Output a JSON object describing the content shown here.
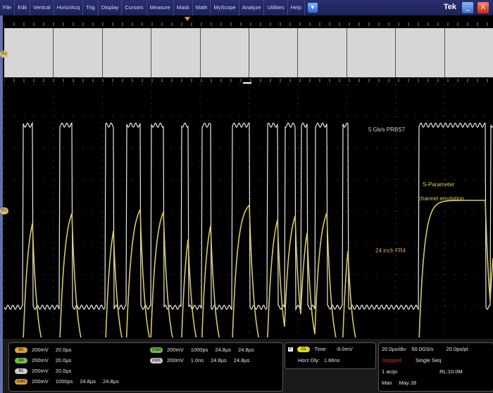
{
  "menu": {
    "items": [
      "File",
      "Edit",
      "Vertical",
      "Horiz/Acq",
      "Trig",
      "Display",
      "Cursors",
      "Measure",
      "Mask",
      "Math",
      "MyScope",
      "Analyze",
      "Utilities",
      "Help"
    ],
    "dropdown_icon": "chevron-down-icon",
    "brand": "Tek",
    "minimize_icon": "minimize-icon",
    "close_icon": "close-icon"
  },
  "colors": {
    "white_trace": "#e8e8e8",
    "yellow_trace": "#d8c860",
    "label_orange": "#e0a060",
    "menubar": "#1c2158"
  },
  "waveform_labels": {
    "signal": "5 Gb/s PRBS7",
    "emulation_line1": "S-Parameter",
    "emulation_line2": "channel emulation",
    "channel": "24 inch FR4"
  },
  "channel_marker": "R1",
  "readouts": {
    "left": [
      {
        "badge": "M1",
        "color": "orange",
        "scale": "200mV",
        "time": "20.0µs"
      },
      {
        "badge": "M4",
        "color": "green",
        "scale": "200mV",
        "time": "20.0µs"
      },
      {
        "badge": "R1",
        "color": "gray",
        "scale": "200mV",
        "time": "20.0µs"
      },
      {
        "badge": "Z1M1",
        "color": "orange",
        "scale": "200mV",
        "res": "1000ps",
        "pos1": "24.8µs",
        "pos2": "24.8µs"
      }
    ],
    "right": [
      {
        "badge": "Z1M4",
        "color": "green",
        "scale": "200mV",
        "res": "1000ps",
        "pos1": "24.8µs",
        "pos2": "24.8µs"
      },
      {
        "badge": "Z1R1",
        "color": "gray",
        "scale": "200mV",
        "res": "1.0ns",
        "pos1": "24.8µs",
        "pos2": "24.8µs"
      }
    ]
  },
  "trigger": {
    "mode": "A'",
    "badge": "C1",
    "type": "Time",
    "level": "-9.0mV",
    "horz_dly_label": "Horz Dly:",
    "horz_dly": "1.66ns"
  },
  "acquisition": {
    "timebase": "20.0µs/div",
    "sample_rate": "50.0GS/s",
    "resolution": "20.0ps/pt",
    "state": "Stopped",
    "mode": "Single Seq",
    "acqs": "1 acqs",
    "record": "RL:10.0M",
    "date_label": "Man",
    "date": "May 28"
  }
}
